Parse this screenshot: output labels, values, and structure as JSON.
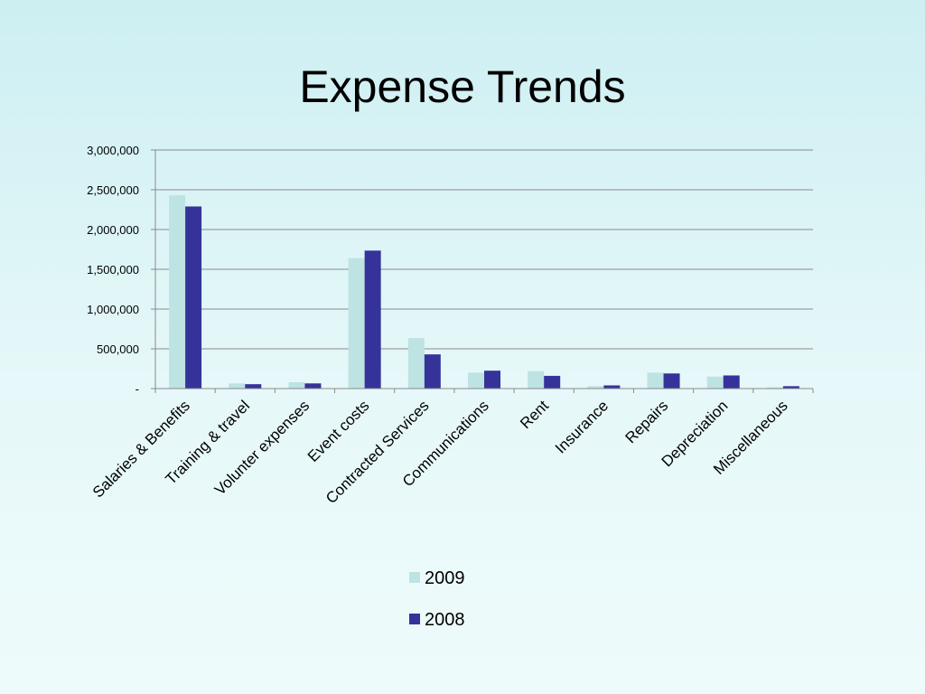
{
  "slide": {
    "title": "Expense Trends"
  },
  "chart_data": {
    "type": "bar",
    "title": "",
    "xlabel": "",
    "ylabel": "",
    "categories": [
      "Salaries & Benefits",
      "Training & travel",
      "Volunter expenses",
      "Event costs",
      "Contracted Services",
      "Communications",
      "Rent",
      "Insurance",
      "Repairs",
      "Depreciation",
      "Miscellaneous"
    ],
    "series": [
      {
        "name": "2009",
        "color": "#bde3e3",
        "values": [
          2430000,
          65000,
          80000,
          1640000,
          635000,
          200000,
          220000,
          30000,
          200000,
          150000,
          15000
        ]
      },
      {
        "name": "2008",
        "color": "#35339a",
        "values": [
          2290000,
          55000,
          65000,
          1735000,
          430000,
          225000,
          160000,
          40000,
          190000,
          165000,
          30000
        ]
      }
    ],
    "ylim": [
      0,
      3000000
    ],
    "yticks": [
      0,
      500000,
      1000000,
      1500000,
      2000000,
      2500000,
      3000000
    ],
    "ytick_labels": [
      "-",
      "500,000",
      "1,000,000",
      "1,500,000",
      "2,000,000",
      "2,500,000",
      "3,000,000"
    ],
    "grid": true,
    "legend_position": "bottom"
  }
}
